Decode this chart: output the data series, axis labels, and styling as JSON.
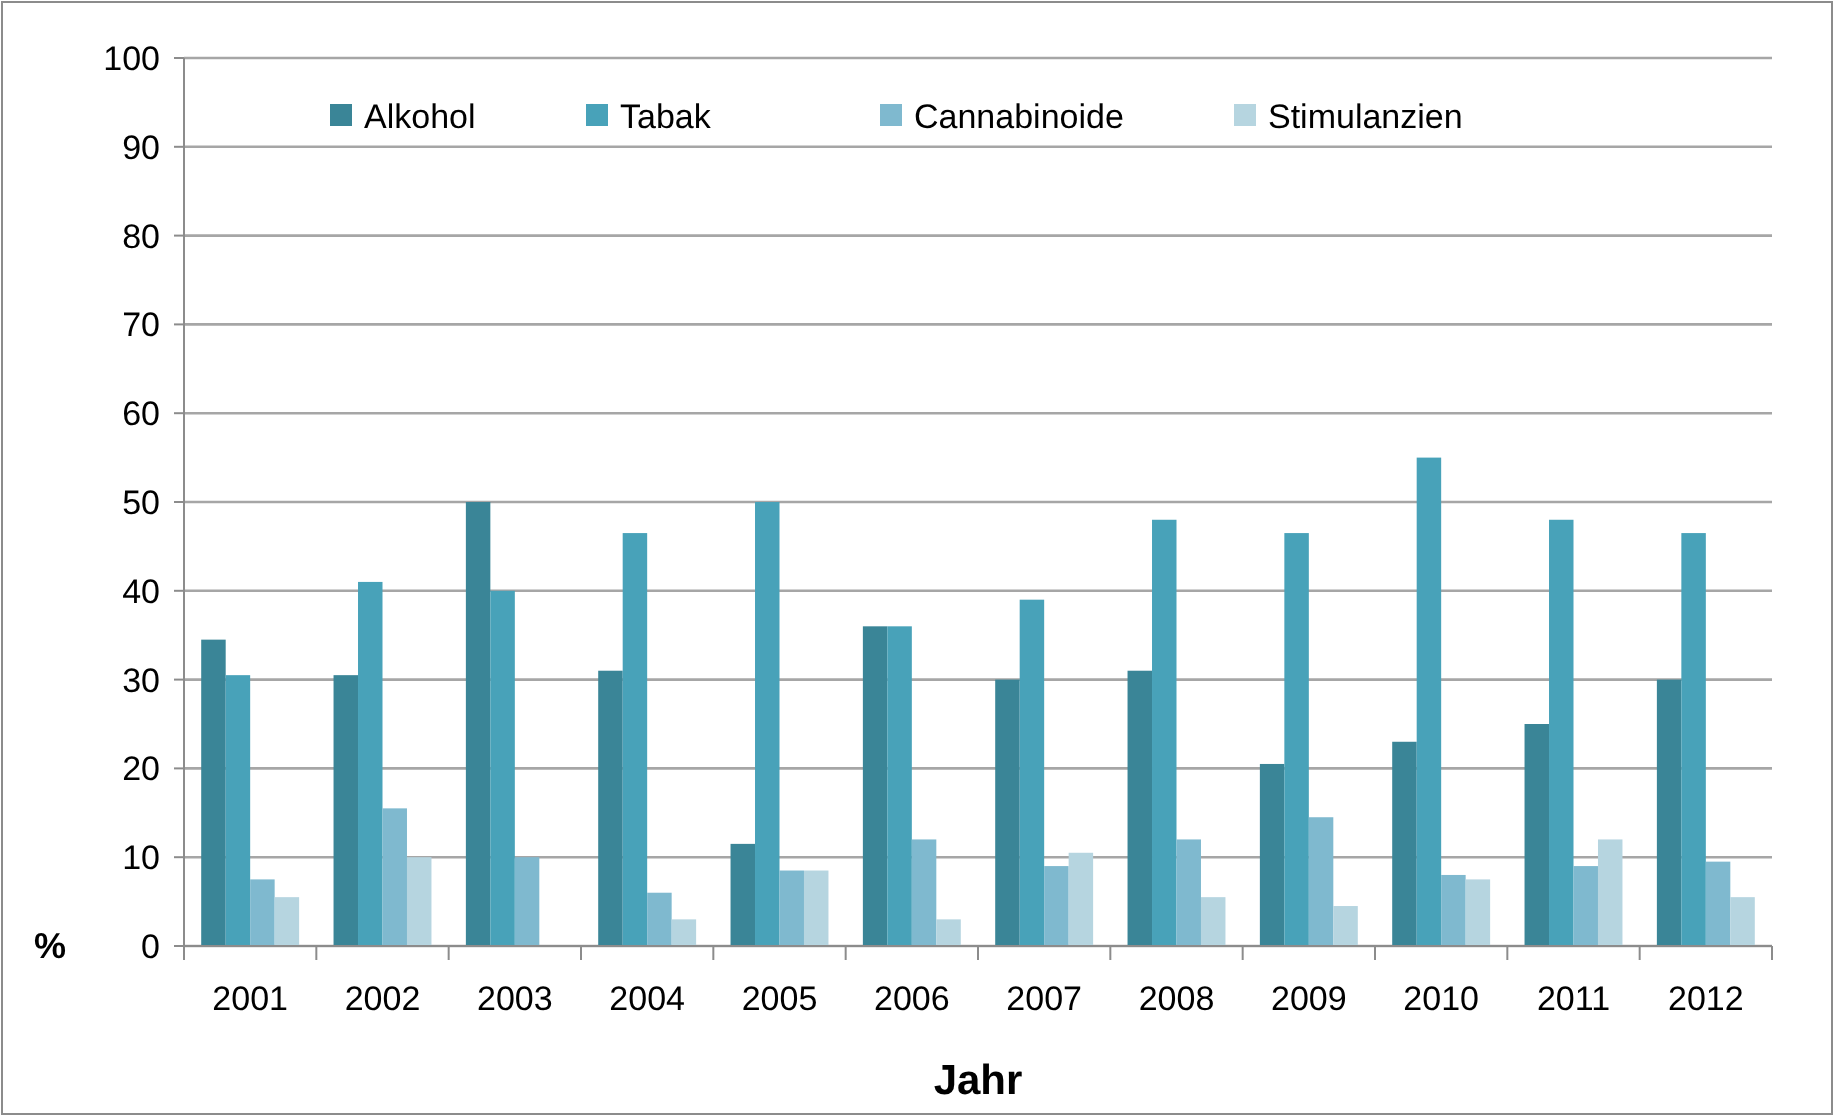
{
  "chart_data": {
    "type": "bar",
    "xlabel": "Jahr",
    "ylabel": "%",
    "categories": [
      "2001",
      "2002",
      "2003",
      "2004",
      "2005",
      "2006",
      "2007",
      "2008",
      "2009",
      "2010",
      "2011",
      "2012"
    ],
    "series": [
      {
        "name": "Alkohol",
        "color": "#3a8597",
        "values": [
          34.5,
          30.5,
          50,
          31,
          11.5,
          36,
          30,
          31,
          20.5,
          23,
          25,
          30
        ]
      },
      {
        "name": "Tabak",
        "color": "#48a2b9",
        "values": [
          30.5,
          41,
          40,
          46.5,
          50,
          36,
          39,
          48,
          46.5,
          55,
          48,
          46.5
        ]
      },
      {
        "name": "Cannabinoide",
        "color": "#7fb9cf",
        "values": [
          7.5,
          15.5,
          10,
          6,
          8.5,
          12,
          9,
          12,
          14.5,
          8,
          9,
          9.5
        ]
      },
      {
        "name": "Stimulanzien",
        "color": "#b6d5e0",
        "values": [
          5.5,
          10,
          null,
          3,
          8.5,
          3,
          10.5,
          5.5,
          4.5,
          7.5,
          12,
          5.5
        ]
      }
    ],
    "ylim": [
      0,
      100
    ],
    "yticks": [
      0,
      10,
      20,
      30,
      40,
      50,
      60,
      70,
      80,
      90,
      100
    ],
    "grid": "y",
    "legend": "top"
  }
}
